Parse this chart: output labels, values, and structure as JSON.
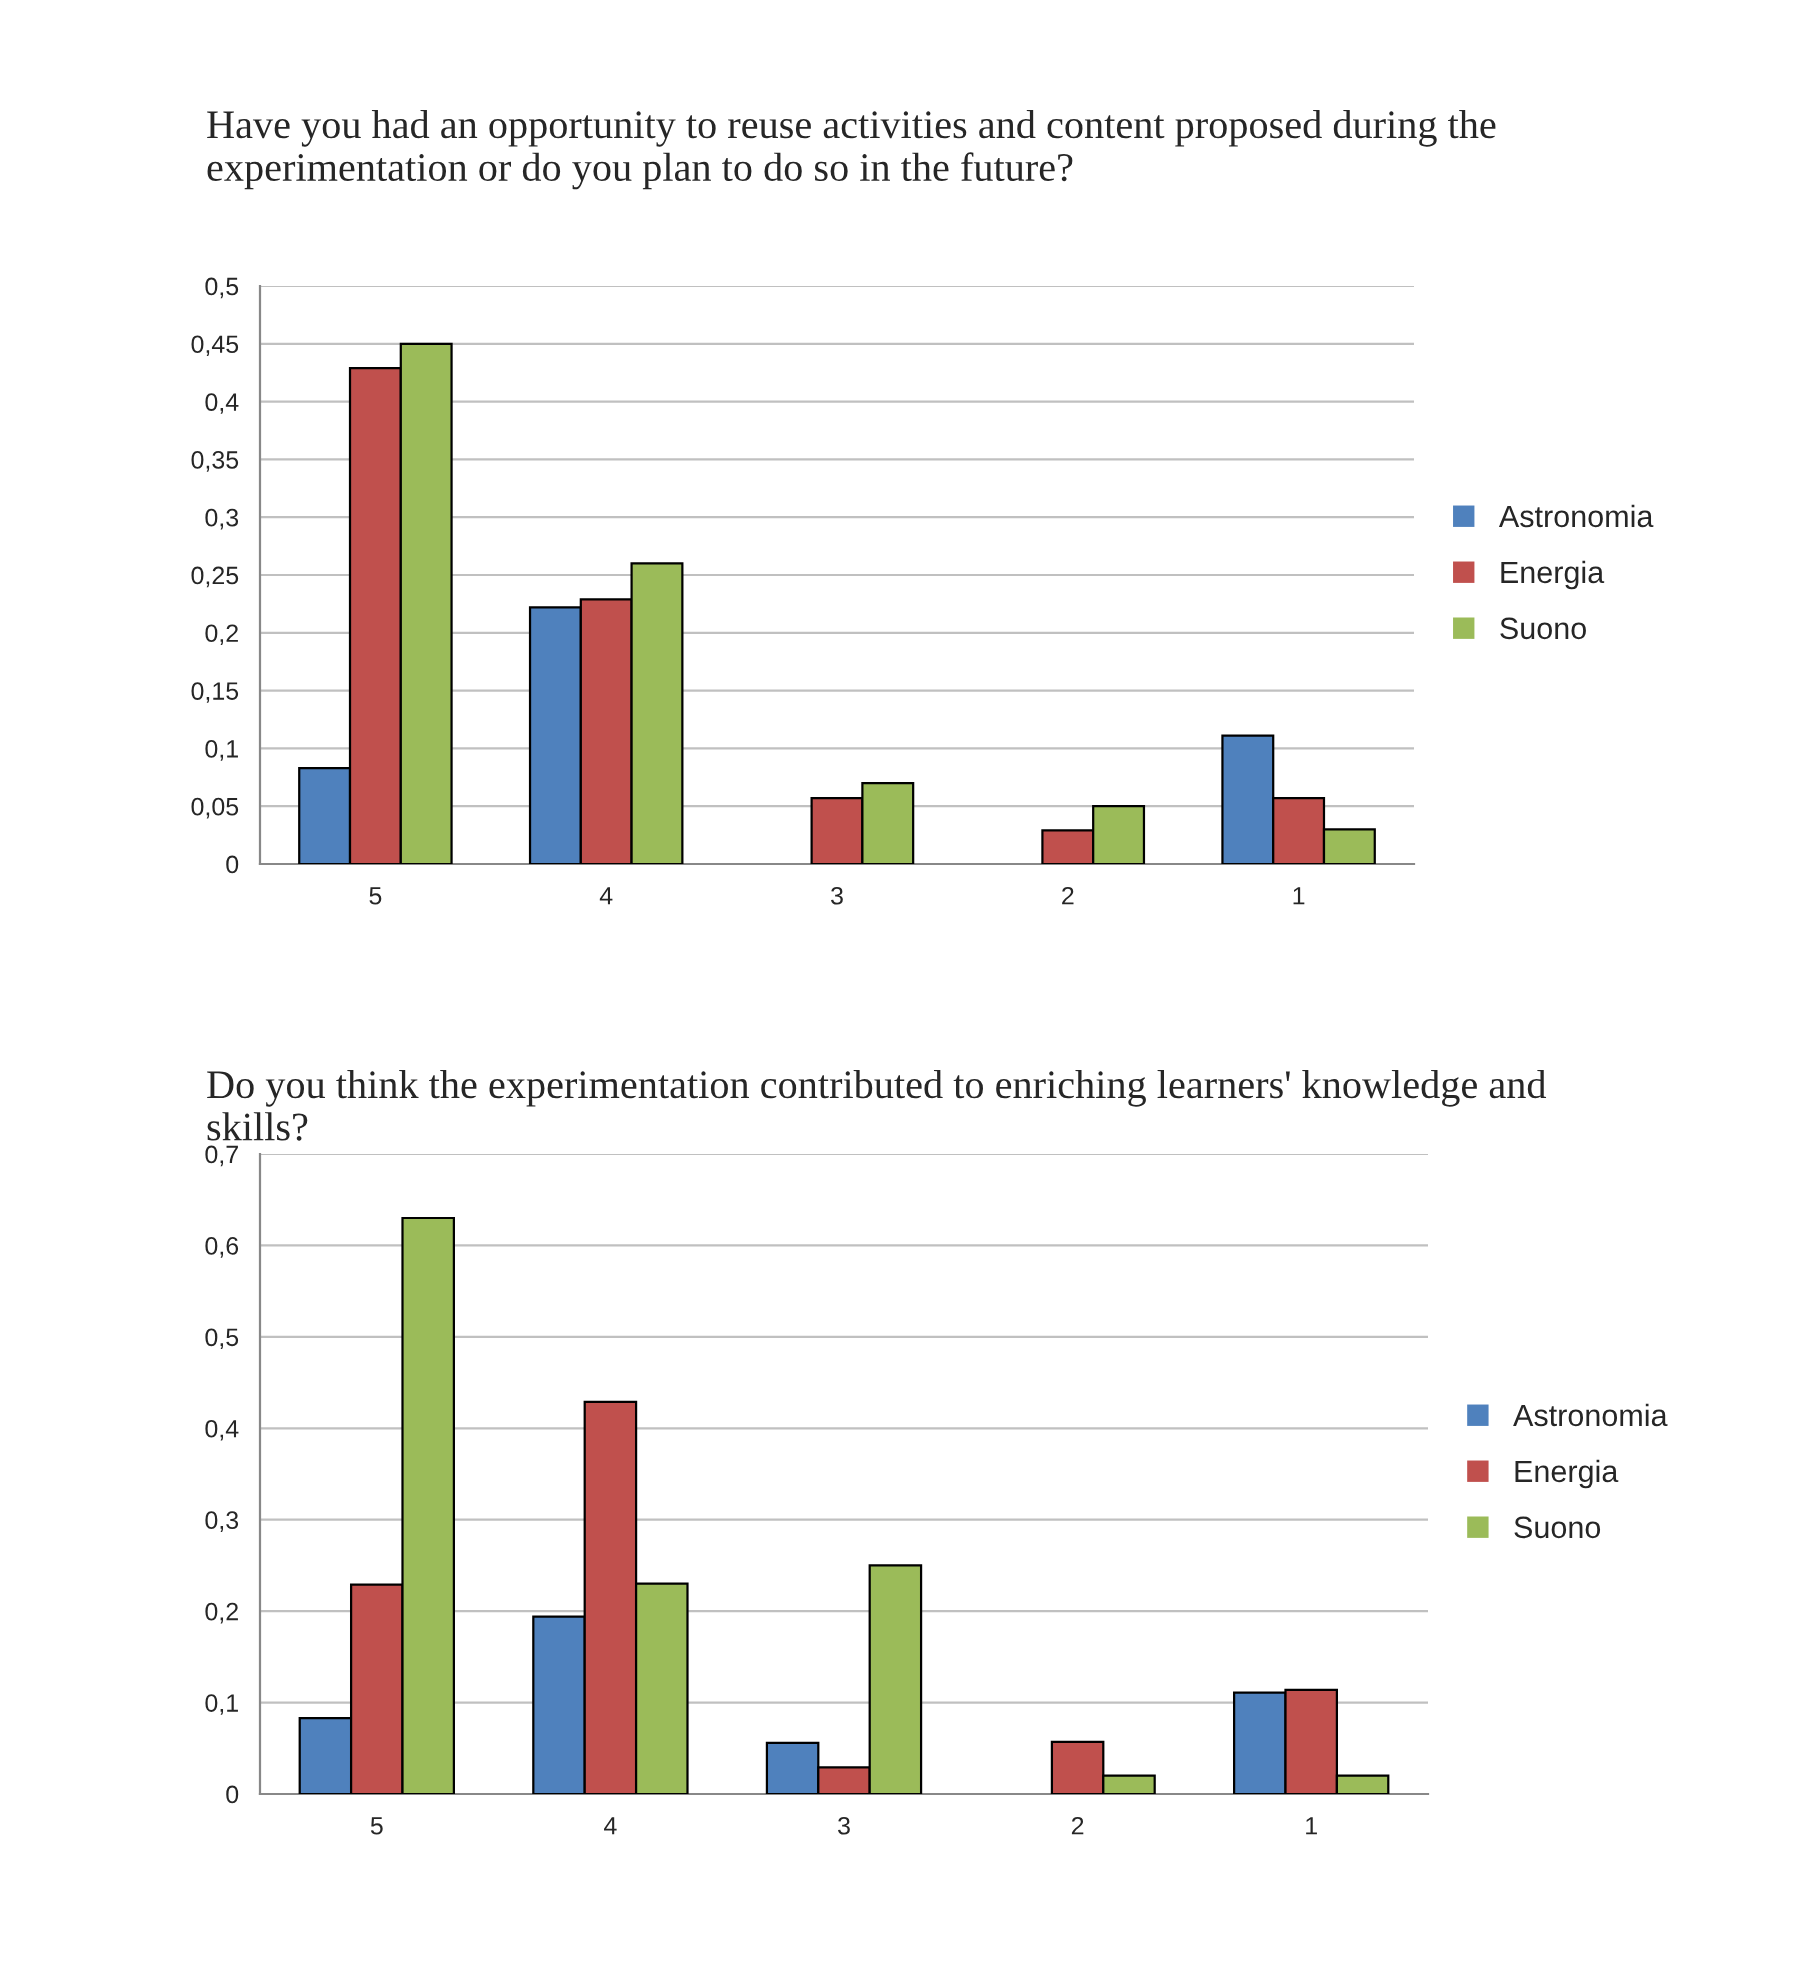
{
  "chart_data": [
    {
      "type": "bar",
      "title": "Have you had an opportunity to reuse activities and content proposed during the experimentation or do you plan to do so in the future?",
      "categories": [
        "5",
        "4",
        "3",
        "2",
        "1"
      ],
      "series": [
        {
          "name": "Astronomia",
          "color": "#4f81bd",
          "values": [
            0.083,
            0.222,
            0,
            0,
            0.111
          ]
        },
        {
          "name": "Energia",
          "color": "#c0504d",
          "values": [
            0.429,
            0.229,
            0.057,
            0.029,
            0.057
          ]
        },
        {
          "name": "Suono",
          "color": "#9bbb59",
          "values": [
            0.45,
            0.26,
            0.07,
            0.05,
            0.03
          ]
        }
      ],
      "ylim": [
        0,
        0.5
      ],
      "yticks": [
        0,
        {
          "value": 0.05,
          "label": "0,05"
        },
        {
          "value": 0.1,
          "label": "0,1"
        },
        {
          "value": 0.15,
          "label": "0,15"
        },
        {
          "value": 0.2,
          "label": "0,2"
        },
        {
          "value": 0.25,
          "label": "0,25"
        },
        {
          "value": 0.3,
          "label": "0,3"
        },
        {
          "value": 0.35,
          "label": "0,35"
        },
        {
          "value": 0.4,
          "label": "0,4"
        },
        {
          "value": 0.45,
          "label": "0,45"
        },
        {
          "value": 0.5,
          "label": "0,5"
        }
      ],
      "grid": "y",
      "legend": "right"
    },
    {
      "type": "bar",
      "title": "Do you think the experimentation contributed to enriching learners' knowledge and skills?",
      "categories": [
        "5",
        "4",
        "3",
        "2",
        "1"
      ],
      "series": [
        {
          "name": "Astronomia",
          "color": "#4f81bd",
          "values": [
            0.083,
            0.194,
            0.056,
            0,
            0.111
          ]
        },
        {
          "name": "Energia",
          "color": "#c0504d",
          "values": [
            0.229,
            0.429,
            0.029,
            0.057,
            0.114
          ]
        },
        {
          "name": "Suono",
          "color": "#9bbb59",
          "values": [
            0.63,
            0.23,
            0.25,
            0.02,
            0.02
          ]
        }
      ],
      "ylim": [
        0,
        0.7
      ],
      "yticks": [
        0,
        {
          "value": 0.1,
          "label": "0,1"
        },
        {
          "value": 0.2,
          "label": "0,2"
        },
        {
          "value": 0.3,
          "label": "0,3"
        },
        {
          "value": 0.4,
          "label": "0,4"
        },
        {
          "value": 0.5,
          "label": "0,5"
        },
        {
          "value": 0.6,
          "label": "0,6"
        },
        {
          "value": 0.7,
          "label": "0,7"
        }
      ],
      "grid": "y",
      "legend": "right"
    }
  ]
}
